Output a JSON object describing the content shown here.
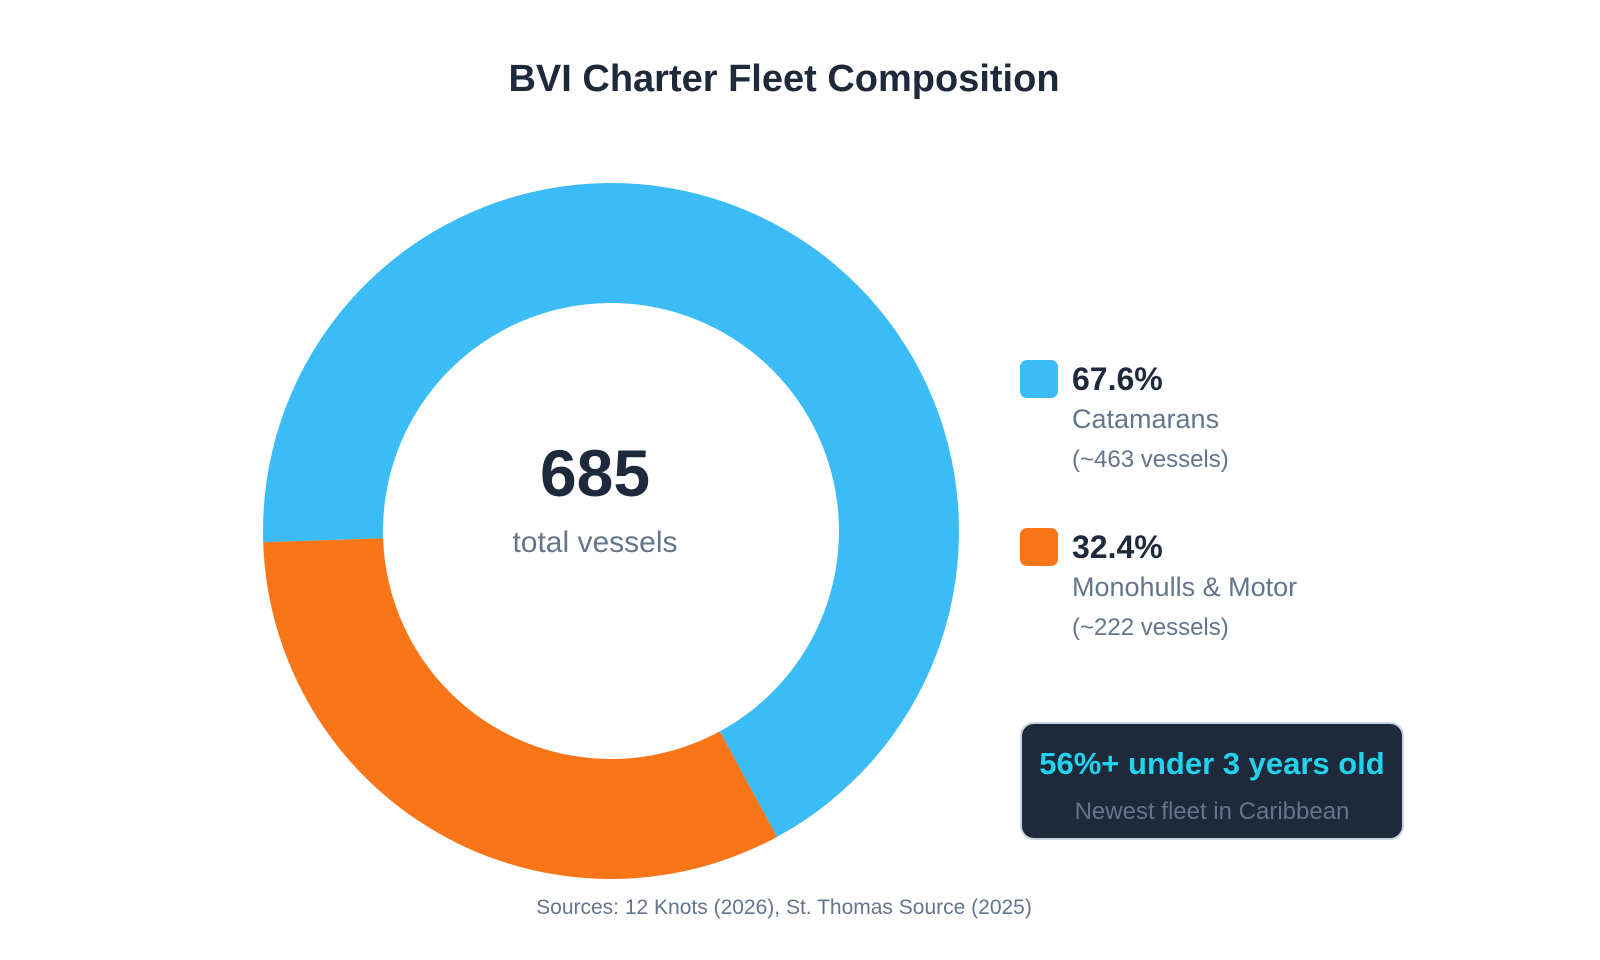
{
  "chart_data": {
    "type": "pie",
    "title": "BVI Charter Fleet Composition",
    "center": {
      "value": "685",
      "label": "total vessels"
    },
    "categories": [
      "Catamarans",
      "Monohulls & Motor"
    ],
    "values": [
      67.6,
      32.4
    ],
    "slices": [
      {
        "name": "Catamarans",
        "percent": 67.6,
        "percent_label": "67.6%",
        "count_label": "(~463 vessels)",
        "color": "#3bbcf7"
      },
      {
        "name": "Monohulls & Motor",
        "percent": 32.4,
        "percent_label": "32.4%",
        "count_label": "(~222 vessels)",
        "color": "#f97518"
      }
    ],
    "legend_placement": "right"
  },
  "callout": {
    "headline": "56%+ under 3 years old",
    "subtext": "Newest fleet in Caribbean",
    "headline_color": "#22d3ee",
    "background_color": "#1e293b"
  },
  "sources": "Sources: 12 Knots (2026), St. Thomas Source (2025)"
}
